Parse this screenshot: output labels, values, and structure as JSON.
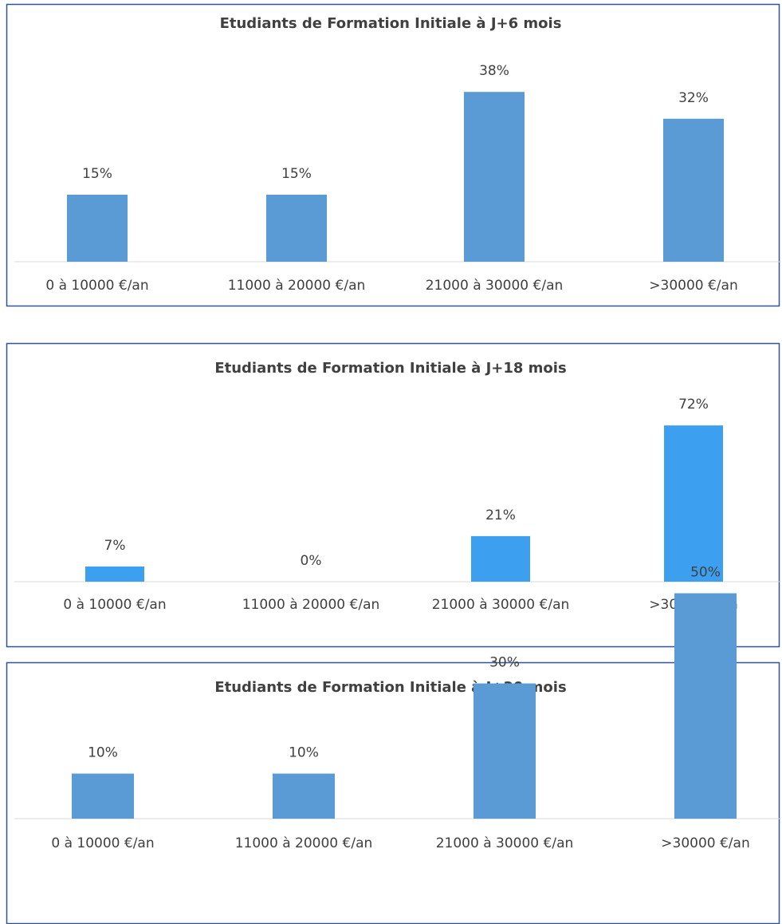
{
  "chart_data": [
    {
      "type": "bar",
      "title": "Etudiants de Formation Initiale à J+6 mois",
      "categories": [
        "0 à 10000 €/an",
        "11000 à 20000 €/an",
        "21000 à 30000 €/an",
        ">30000 €/an"
      ],
      "values": [
        15,
        15,
        38,
        32
      ],
      "value_labels": [
        "15%",
        "15%",
        "38%",
        "32%"
      ],
      "color": "#5b9bd5"
    },
    {
      "type": "bar",
      "title": "Etudiants de Formation Initiale à J+18 mois",
      "categories": [
        "0 à 10000 €/an",
        "11000 à 20000 €/an",
        "21000 à 30000 €/an",
        ">30000 €/an"
      ],
      "values": [
        7,
        0,
        21,
        72
      ],
      "value_labels": [
        "7%",
        "0%",
        "21%",
        "72%"
      ],
      "color": "#3c9ff0"
    },
    {
      "type": "bar",
      "title": "Etudiants de Formation Initiale à J+30 mois",
      "categories": [
        "0 à 10000 €/an",
        "11000 à 20000 €/an",
        "21000 à 30000 €/an",
        ">30000 €/an"
      ],
      "values": [
        10,
        10,
        30,
        50
      ],
      "value_labels": [
        "10%",
        "10%",
        "30%",
        "50%"
      ],
      "color": "#5b9bd5"
    }
  ]
}
